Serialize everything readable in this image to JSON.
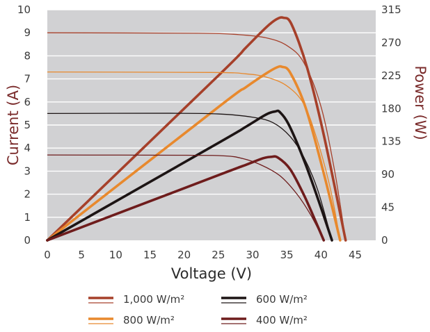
{
  "chart_data": {
    "type": "line",
    "xlabel": "Voltage (V)",
    "ylabel_left": "Current (A)",
    "ylabel_right": "Power (W)",
    "xlim": [
      0,
      48
    ],
    "ylim_left": [
      0,
      10
    ],
    "ylim_right": [
      0,
      315
    ],
    "x_ticks": [
      0,
      5,
      10,
      15,
      20,
      25,
      30,
      35,
      40,
      45
    ],
    "y_ticks_left": [
      0,
      1,
      2,
      3,
      4,
      5,
      6,
      7,
      8,
      9,
      10
    ],
    "y_ticks_right": [
      0,
      45,
      90,
      135,
      180,
      225,
      270,
      315
    ],
    "grid": "horizontal",
    "background": "#d1d1d3",
    "axis_title_color": "#7a2b2b",
    "legend_position": "bottom",
    "series": [
      {
        "name": "1,000 W/m²",
        "color": "#a6402a",
        "current": [
          [
            0,
            9.0
          ],
          [
            22,
            8.98
          ],
          [
            28,
            8.92
          ],
          [
            32,
            8.78
          ],
          [
            35,
            8.45
          ],
          [
            37.5,
            7.7
          ],
          [
            40,
            5.8
          ],
          [
            42,
            3.0
          ],
          [
            43.6,
            0
          ]
        ],
        "power": [
          [
            0,
            0
          ],
          [
            25,
            225
          ],
          [
            29,
            263
          ],
          [
            32,
            291
          ],
          [
            33.5,
            302
          ],
          [
            34.5,
            304
          ],
          [
            35.7,
            295
          ],
          [
            38,
            235
          ],
          [
            40.5,
            140
          ],
          [
            43.6,
            0
          ]
        ]
      },
      {
        "name": "800 W/m²",
        "color": "#e8892d",
        "current": [
          [
            0,
            7.3
          ],
          [
            24,
            7.28
          ],
          [
            29,
            7.22
          ],
          [
            32,
            7.08
          ],
          [
            35,
            6.7
          ],
          [
            37.5,
            5.9
          ],
          [
            39.5,
            4.3
          ],
          [
            41.4,
            2.2
          ],
          [
            42.8,
            0
          ]
        ],
        "power": [
          [
            0,
            0
          ],
          [
            25,
            182
          ],
          [
            29,
            209
          ],
          [
            32,
            228
          ],
          [
            33.5,
            236
          ],
          [
            34.3,
            237
          ],
          [
            35.5,
            229
          ],
          [
            37.8,
            180
          ],
          [
            40.5,
            88
          ],
          [
            42.8,
            0
          ]
        ]
      },
      {
        "name": "600 W/m²",
        "color": "#1c1414",
        "current": [
          [
            0,
            5.5
          ],
          [
            18,
            5.51
          ],
          [
            25,
            5.48
          ],
          [
            30,
            5.34
          ],
          [
            33,
            5.1
          ],
          [
            35.5,
            4.5
          ],
          [
            37.5,
            3.6
          ],
          [
            39.5,
            2.2
          ],
          [
            41.6,
            0
          ]
        ],
        "power": [
          [
            0,
            0
          ],
          [
            25,
            133
          ],
          [
            29,
            155
          ],
          [
            32,
            172
          ],
          [
            33.3,
            176
          ],
          [
            34,
            175
          ],
          [
            35.4,
            156
          ],
          [
            37.7,
            105
          ],
          [
            39.8,
            50
          ],
          [
            41.6,
            0
          ]
        ]
      },
      {
        "name": "400 W/m²",
        "color": "#6e1c1c",
        "current": [
          [
            0,
            3.7
          ],
          [
            20,
            3.69
          ],
          [
            26,
            3.66
          ],
          [
            28.5,
            3.55
          ],
          [
            31,
            3.3
          ],
          [
            34,
            2.8
          ],
          [
            36.5,
            2.0
          ],
          [
            38.5,
            1.1
          ],
          [
            40.4,
            0
          ]
        ],
        "power": [
          [
            0,
            0
          ],
          [
            25,
            89
          ],
          [
            29,
            103
          ],
          [
            31.5,
            112
          ],
          [
            32.7,
            114
          ],
          [
            33.7,
            113
          ],
          [
            35.5,
            97
          ],
          [
            37.5,
            62
          ],
          [
            39.3,
            24
          ],
          [
            40.4,
            0
          ]
        ]
      }
    ]
  }
}
